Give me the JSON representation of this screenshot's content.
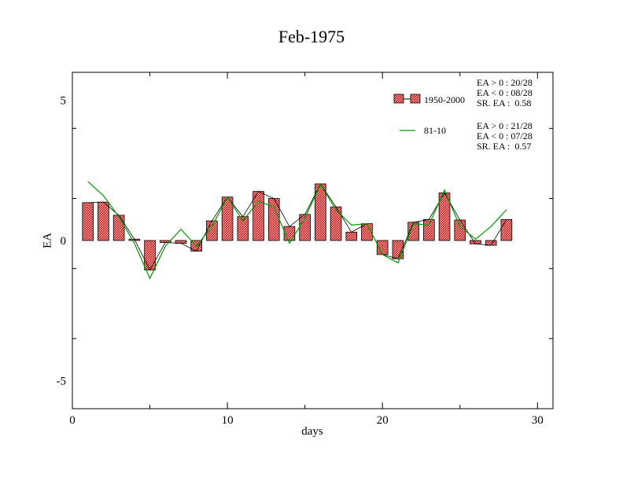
{
  "chart_data": {
    "type": "bar",
    "title": "Feb-1975",
    "xlabel": "days",
    "ylabel": "EA",
    "xlim": [
      0,
      31
    ],
    "ylim": [
      -6,
      6
    ],
    "xticks": [
      0,
      10,
      20,
      30
    ],
    "yticks": [
      -5,
      0,
      5
    ],
    "grid": false,
    "legend_position": "top-right",
    "series": [
      {
        "name": "1950-2000",
        "kind": "bar",
        "fill": "#e8a0a0",
        "outline": "#c00000",
        "x": [
          1,
          2,
          3,
          4,
          5,
          6,
          7,
          8,
          9,
          10,
          11,
          12,
          13,
          14,
          15,
          16,
          17,
          18,
          19,
          20,
          21,
          22,
          23,
          24,
          25,
          26,
          27,
          28
        ],
        "values": [
          1.35,
          1.37,
          0.9,
          0.05,
          -1.05,
          -0.07,
          -0.1,
          -0.38,
          0.7,
          1.55,
          0.85,
          1.75,
          1.5,
          0.5,
          0.93,
          2.02,
          1.2,
          0.3,
          0.6,
          -0.5,
          -0.65,
          0.65,
          0.75,
          1.7,
          0.73,
          -0.12,
          -0.17,
          0.75
        ]
      },
      {
        "name": "81-10",
        "kind": "line",
        "color": "#009900",
        "x": [
          1,
          2,
          3,
          4,
          5,
          6,
          7,
          8,
          9,
          10,
          11,
          12,
          13,
          14,
          15,
          16,
          17,
          18,
          19,
          20,
          21,
          22,
          23,
          24,
          25,
          26,
          27,
          28
        ],
        "values": [
          2.1,
          1.6,
          0.85,
          -0.1,
          -1.35,
          -0.2,
          0.4,
          -0.2,
          0.5,
          1.55,
          0.7,
          1.4,
          1.2,
          -0.1,
          0.8,
          2.0,
          1.1,
          0.55,
          0.6,
          -0.5,
          -0.8,
          0.6,
          0.55,
          1.8,
          0.5,
          0.05,
          0.5,
          1.1
        ]
      }
    ],
    "stats": {
      "1950-2000": [
        "EA > 0 : 20/28",
        "EA < 0 : 08/28",
        "SR. EA :  0.58"
      ],
      "81-10": [
        "EA > 0 : 21/28",
        "EA < 0 : 07/28",
        "SR. EA :  0.57"
      ]
    }
  }
}
